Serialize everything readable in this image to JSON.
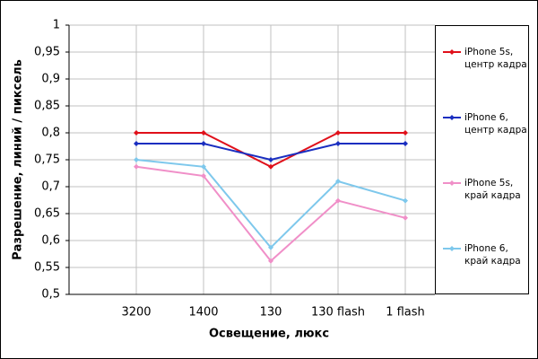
{
  "chart_data": {
    "type": "line",
    "x_label": "Освещение, люкс",
    "y_label": "Разрешение, линий / пиксель",
    "categories": [
      "3200",
      "1400",
      "130",
      "130 flash",
      "1 flash"
    ],
    "series": [
      {
        "name": "iPhone 5s, центр кадра",
        "color": "#e0101a",
        "values": [
          0.8,
          0.8,
          0.737,
          0.8,
          0.8
        ]
      },
      {
        "name": "iPhone 6, центр кадра",
        "color": "#1a2ec0",
        "values": [
          0.78,
          0.78,
          0.75,
          0.78,
          0.78
        ]
      },
      {
        "name": "iPhone 5s, край кадра",
        "color": "#f08fc8",
        "values": [
          0.737,
          0.72,
          0.562,
          0.674,
          0.642
        ]
      },
      {
        "name": "iPhone 6, край кадра",
        "color": "#7ec8ec",
        "values": [
          0.75,
          0.737,
          0.587,
          0.71,
          0.674
        ]
      }
    ],
    "ylim": [
      0.5,
      1
    ],
    "yticks": [
      {
        "value": 0.5,
        "label": "0,5"
      },
      {
        "value": 0.55,
        "label": "0,55"
      },
      {
        "value": 0.6,
        "label": "0,6"
      },
      {
        "value": 0.65,
        "label": "0,65"
      },
      {
        "value": 0.7,
        "label": "0,7"
      },
      {
        "value": 0.75,
        "label": "0,75"
      },
      {
        "value": 0.8,
        "label": "0,8"
      },
      {
        "value": 0.85,
        "label": "0,85"
      },
      {
        "value": 0.9,
        "label": "0,9"
      },
      {
        "value": 0.95,
        "label": "0,95"
      },
      {
        "value": 1,
        "label": "1"
      }
    ],
    "grid": true,
    "legend": "right"
  }
}
